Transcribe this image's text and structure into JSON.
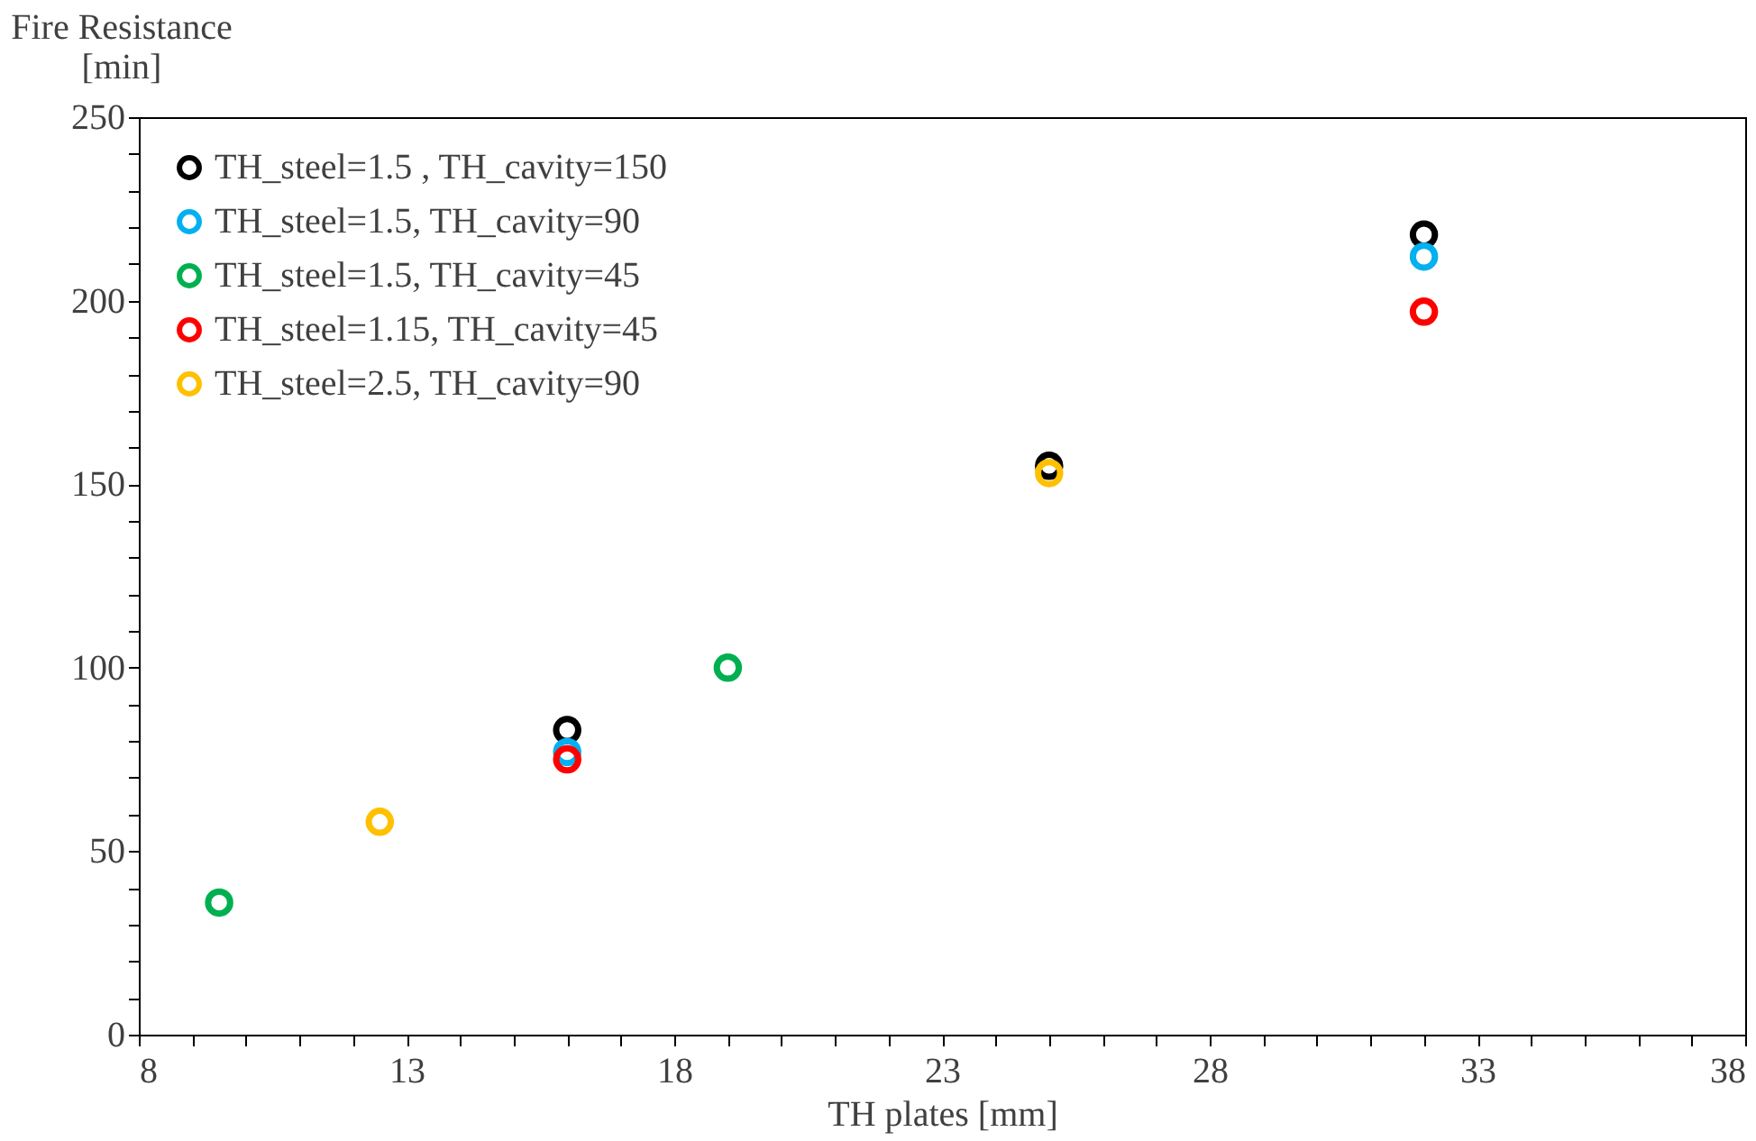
{
  "chart_data": {
    "type": "scatter",
    "xlabel": "TH plates [mm]",
    "ylabel": "Fire Resistance\n[min]",
    "xlim": [
      8,
      38
    ],
    "ylim": [
      0,
      250
    ],
    "xticks": [
      8,
      {
        "value": 9,
        "label": null
      },
      {
        "value": 10,
        "label": null
      },
      {
        "value": 11,
        "label": null
      },
      {
        "value": 12,
        "label": null
      },
      13,
      {
        "value": 14,
        "label": null
      },
      {
        "value": 15,
        "label": null
      },
      {
        "value": 16,
        "label": null
      },
      {
        "value": 17,
        "label": null
      },
      18,
      {
        "value": 19,
        "label": null
      },
      {
        "value": 20,
        "label": null
      },
      {
        "value": 21,
        "label": null
      },
      {
        "value": 22,
        "label": null
      },
      23,
      {
        "value": 24,
        "label": null
      },
      {
        "value": 25,
        "label": null
      },
      {
        "value": 26,
        "label": null
      },
      {
        "value": 27,
        "label": null
      },
      28,
      {
        "value": 29,
        "label": null
      },
      {
        "value": 30,
        "label": null
      },
      {
        "value": 31,
        "label": null
      },
      {
        "value": 32,
        "label": null
      },
      33,
      {
        "value": 34,
        "label": null
      },
      {
        "value": 35,
        "label": null
      },
      {
        "value": 36,
        "label": null
      },
      {
        "value": 37,
        "label": null
      },
      38
    ],
    "yticks": [
      0,
      {
        "value": 10,
        "label": null
      },
      {
        "value": 20,
        "label": null
      },
      {
        "value": 30,
        "label": null
      },
      {
        "value": 40,
        "label": null
      },
      50,
      {
        "value": 60,
        "label": null
      },
      {
        "value": 70,
        "label": null
      },
      {
        "value": 80,
        "label": null
      },
      {
        "value": 90,
        "label": null
      },
      100,
      {
        "value": 110,
        "label": null
      },
      {
        "value": 120,
        "label": null
      },
      {
        "value": 130,
        "label": null
      },
      {
        "value": 140,
        "label": null
      },
      150,
      {
        "value": 160,
        "label": null
      },
      {
        "value": 170,
        "label": null
      },
      {
        "value": 180,
        "label": null
      },
      {
        "value": 190,
        "label": null
      },
      200,
      {
        "value": 210,
        "label": null
      },
      {
        "value": 220,
        "label": null
      },
      {
        "value": 230,
        "label": null
      },
      {
        "value": 240,
        "label": null
      },
      250
    ],
    "grid": false,
    "legend": "top left",
    "marker": "circle",
    "series": [
      {
        "name": "TH_steel=1.5 , TH_cavity=150",
        "color": "#000000",
        "x": [
          16,
          25,
          32
        ],
        "values": [
          83,
          155,
          218
        ]
      },
      {
        "name": "TH_steel=1.5, TH_cavity=90",
        "color": "#00b0f0",
        "x": [
          16,
          32
        ],
        "values": [
          77,
          212
        ]
      },
      {
        "name": "TH_steel=1.5, TH_cavity=45",
        "color": "#00b050",
        "x": [
          9.5,
          19
        ],
        "values": [
          36,
          100
        ]
      },
      {
        "name": "TH_steel=1.15, TH_cavity=45",
        "color": "#ff0000",
        "x": [
          16,
          32
        ],
        "values": [
          75,
          197
        ]
      },
      {
        "name": "TH_steel=2.5, TH_cavity=90",
        "color": "#ffc000",
        "x": [
          12.5,
          25
        ],
        "values": [
          58,
          153
        ]
      }
    ]
  }
}
